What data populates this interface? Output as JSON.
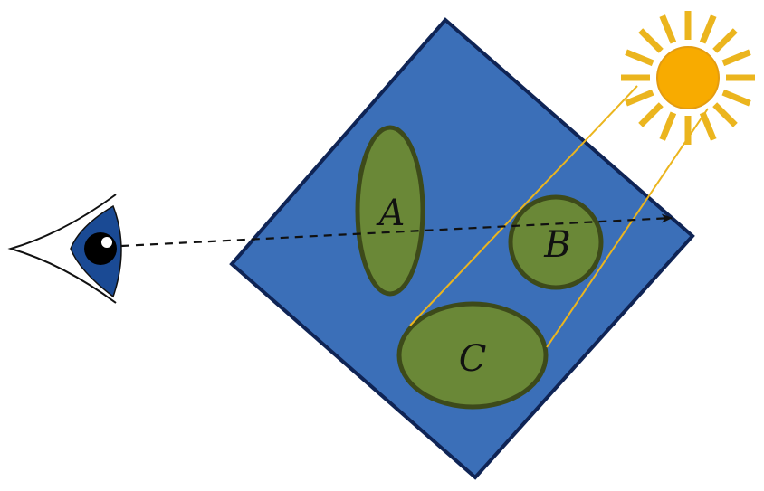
{
  "labels": {
    "a": "A",
    "b": "B",
    "c": "C"
  },
  "colors": {
    "square_fill": "#3b6fb8",
    "square_stroke": "#0f2455",
    "region_fill": "#6a8837",
    "region_stroke": "#3d4a1a",
    "sun_fill": "#f8ab00",
    "sun_ray": "#ebb51e",
    "sun_line": "#ebb51e",
    "eye_iris": "#1a4a94",
    "eye_pupil": "#000000",
    "view_ray": "#111111"
  },
  "icons": {
    "eye": "eye-icon",
    "sun": "sun-icon"
  }
}
